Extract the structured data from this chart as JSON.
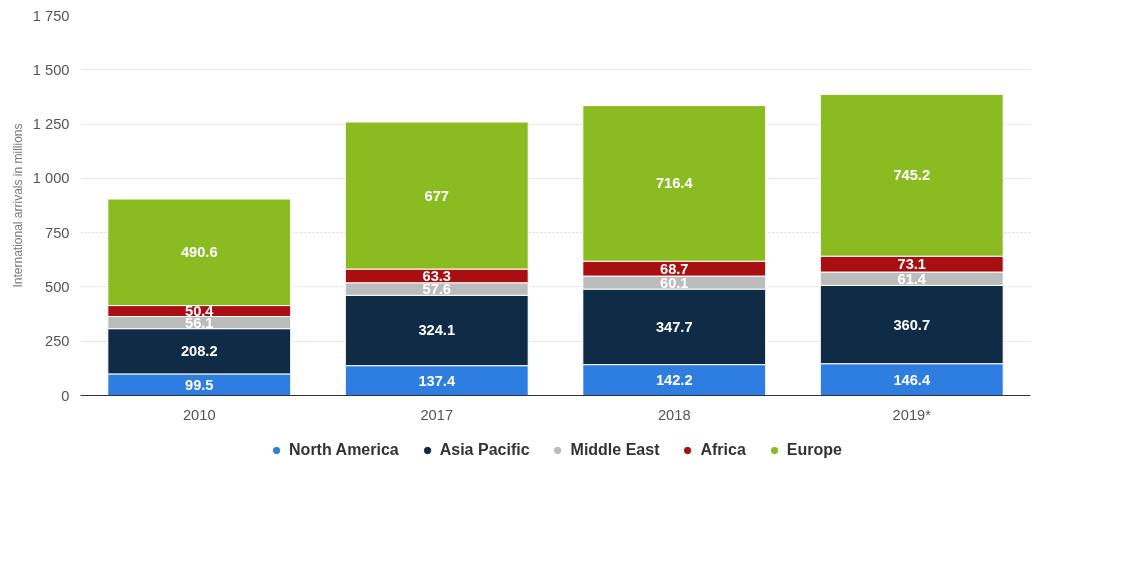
{
  "chart_data": {
    "type": "bar",
    "stacked": true,
    "ylabel": "International arrivals in millions",
    "categories": [
      "2010",
      "2017",
      "2018",
      "2019*"
    ],
    "series": [
      {
        "name": "North America",
        "color": "#2e7de1",
        "values": [
          99.5,
          137.4,
          142.2,
          146.4
        ]
      },
      {
        "name": "Asia Pacific",
        "color": "#102b45",
        "values": [
          208.2,
          324.1,
          347.7,
          360.7
        ]
      },
      {
        "name": "Middle East",
        "color": "#bcbcbc",
        "values": [
          56.1,
          57.6,
          60.1,
          61.4
        ]
      },
      {
        "name": "Africa",
        "color": "#a90f12",
        "values": [
          50.4,
          63.3,
          68.7,
          73.1
        ]
      },
      {
        "name": "Europe",
        "color": "#8abc21",
        "values": [
          490.6,
          677,
          716.4,
          745.2
        ]
      }
    ],
    "ylim": [
      0,
      1750
    ],
    "yticks": [
      0,
      250,
      500,
      750,
      {
        "value": 1000,
        "label": "1 000"
      },
      {
        "value": 1250,
        "label": "1 250"
      },
      {
        "value": 1500,
        "label": "1 500"
      },
      {
        "value": 1750,
        "label": "1 750"
      }
    ],
    "grid": "y",
    "legend": "bottom",
    "data_labels": true
  }
}
